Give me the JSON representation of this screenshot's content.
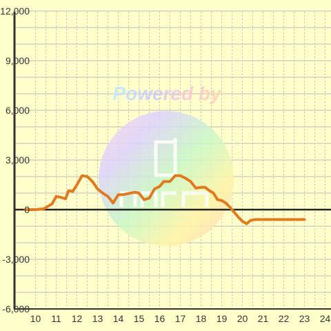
{
  "watermark": {
    "text": "Powered by",
    "brand_text": "3mm"
  },
  "colors": {
    "background": "#ffffcc",
    "grid": "#bbbbbb",
    "axis": "#333333",
    "zero_line": "#222222",
    "line": "#e07a20"
  },
  "chart_data": {
    "type": "line",
    "title": "",
    "xlabel": "",
    "ylabel": "",
    "xlim": [
      9.5,
      24.3
    ],
    "ylim": [
      -6000,
      12000
    ],
    "grid": true,
    "x_ticks": [
      10,
      11,
      12,
      13,
      14,
      15,
      16,
      17,
      18,
      19,
      20,
      21,
      22,
      23,
      24
    ],
    "x_tick_labels": [
      "10",
      "11",
      "12",
      "13",
      "14",
      "15",
      "16",
      "17",
      "18",
      "19",
      "20",
      "21",
      "22",
      "23",
      "24"
    ],
    "y_ticks": [
      -6000,
      -3000,
      0,
      3000,
      6000,
      9000,
      12000
    ],
    "y_tick_labels": [
      "-6,000",
      "-3,000",
      "0",
      "3,000",
      "6,000",
      "9,000",
      "12,000"
    ],
    "series": [
      {
        "x": [
          9.5,
          10.0,
          10.4,
          10.6,
          10.8,
          11.0,
          11.2,
          11.45,
          11.6,
          11.8,
          12.0,
          12.25,
          12.5,
          12.75,
          13.0,
          13.25,
          13.5,
          13.75,
          14.0,
          14.2,
          14.4,
          14.6,
          14.8,
          15.0,
          15.25,
          15.5,
          15.75,
          16.0,
          16.2,
          16.5,
          16.75,
          17.0,
          17.25,
          17.5,
          17.75,
          18.0,
          18.2,
          18.4,
          18.6,
          18.8,
          19.0,
          19.2,
          19.4,
          19.6,
          19.8,
          20.0,
          20.2,
          20.4,
          20.6,
          20.8,
          21.0,
          21.5,
          22.0,
          22.5,
          23.0
        ],
        "y": [
          0,
          0,
          50,
          200,
          350,
          800,
          750,
          650,
          1150,
          1100,
          1500,
          2050,
          2000,
          1700,
          1250,
          1000,
          800,
          400,
          900,
          900,
          950,
          1000,
          1050,
          1000,
          600,
          700,
          1250,
          1400,
          1700,
          1700,
          2050,
          2050,
          1900,
          1700,
          1300,
          1350,
          1350,
          1150,
          1000,
          600,
          550,
          400,
          150,
          -150,
          -450,
          -700,
          -850,
          -650,
          -600,
          -600,
          -600,
          -600,
          -600,
          -600,
          -600
        ]
      }
    ]
  }
}
